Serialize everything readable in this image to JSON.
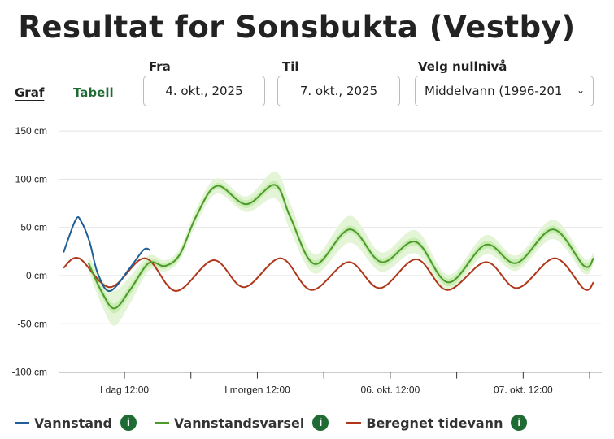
{
  "title": "Resultat for Sonsbukta (Vestby)",
  "tabs": {
    "graf": "Graf",
    "tabell": "Tabell"
  },
  "from": {
    "label": "Fra",
    "value": "4. okt., 2025"
  },
  "to": {
    "label": "Til",
    "value": "7. okt., 2025"
  },
  "zero_level": {
    "label": "Velg nullnivå",
    "value": "Middelvann (1996-201"
  },
  "legend": [
    {
      "label": "Vannstand",
      "color": "#1f5f99",
      "info": "i"
    },
    {
      "label": "Vannstandsvarsel",
      "color": "#4c9a2a",
      "info": "i"
    },
    {
      "label": "Beregnet tidevann",
      "color": "#b0361a",
      "info": "i"
    }
  ],
  "chart_data": {
    "type": "line",
    "x_unit": "hours since 4. okt. 00:00",
    "xlim": [
      0,
      98
    ],
    "ylim": [
      -100,
      150
    ],
    "y_ticks": [
      {
        "v": 150,
        "label": "150 cm"
      },
      {
        "v": 100,
        "label": "100 cm"
      },
      {
        "v": 50,
        "label": "50 cm"
      },
      {
        "v": 0,
        "label": "0 cm"
      },
      {
        "v": -50,
        "label": "-50 cm"
      },
      {
        "v": -100,
        "label": "-100 cm"
      }
    ],
    "x_ticks": [
      {
        "v": 12,
        "label": "I dag 12:00"
      },
      {
        "v": 24,
        "label": ""
      },
      {
        "v": 36,
        "label": "I morgen 12:00"
      },
      {
        "v": 48,
        "label": ""
      },
      {
        "v": 60,
        "label": "06. okt. 12:00"
      },
      {
        "v": 72,
        "label": ""
      },
      {
        "v": 84,
        "label": "07. okt. 12:00"
      },
      {
        "v": 96,
        "label": ""
      }
    ],
    "grid": true,
    "series": [
      {
        "name": "Vannstand",
        "color": "#1f5f99",
        "x": [
          1.0,
          3.2,
          4.2,
          5.7,
          7.2,
          9.4,
          13.0,
          15.5,
          16.7
        ],
        "y": [
          24,
          58,
          56,
          35,
          2,
          -16,
          8,
          27,
          26
        ]
      },
      {
        "name": "Vannstandsvarsel",
        "color": "#4c9a2a",
        "x": [
          5.5,
          8,
          10.2,
          13,
          16.4,
          19.3,
          22,
          25,
          28.7,
          34.0,
          39.2,
          42,
          46.4,
          52.7,
          58.4,
          64.6,
          70.5,
          77.2,
          82.8,
          89.4,
          95.0,
          96.7
        ],
        "y": [
          13,
          -18,
          -34,
          -15,
          13,
          10,
          22,
          62,
          93,
          74,
          94,
          60,
          12,
          48,
          14,
          35,
          -7,
          32,
          13,
          48,
          10,
          18
        ],
        "band_outer": [
          8,
          14,
          18,
          14,
          8,
          6,
          6,
          8,
          8,
          8,
          14,
          14,
          10,
          14,
          10,
          12,
          8,
          10,
          8,
          10,
          8,
          6
        ],
        "band_inner": [
          4,
          5,
          5,
          5,
          4,
          3,
          3,
          3,
          3,
          4,
          4,
          4,
          4,
          4,
          4,
          4,
          4,
          4,
          4,
          4,
          4,
          3
        ]
      },
      {
        "name": "Beregnet tidevann",
        "color": "#b0361a",
        "x": [
          1.0,
          3.8,
          9.4,
          15.7,
          21.3,
          28.1,
          33.6,
          40.2,
          45.8,
          52.5,
          58.1,
          64.7,
          70.3,
          77.3,
          82.9,
          89.7,
          95.0,
          96.7
        ],
        "y": [
          8,
          18,
          -12,
          18,
          -16,
          16,
          -12,
          18,
          -15,
          14,
          -13,
          17,
          -15,
          14,
          -13,
          18,
          -14,
          -7
        ]
      }
    ]
  }
}
